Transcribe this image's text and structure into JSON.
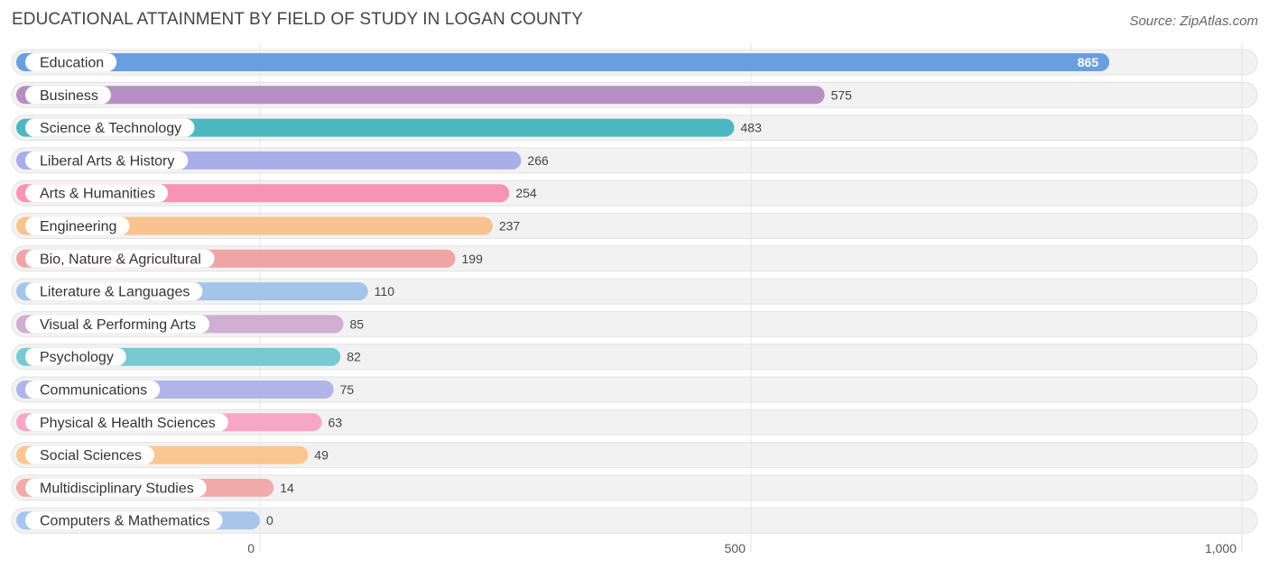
{
  "title": "EDUCATIONAL ATTAINMENT BY FIELD OF STUDY IN LOGAN COUNTY",
  "source": "Source: ZipAtlas.com",
  "chart_data": {
    "type": "bar",
    "orientation": "horizontal",
    "categories": [
      "Education",
      "Business",
      "Science & Technology",
      "Liberal Arts & History",
      "Arts & Humanities",
      "Engineering",
      "Bio, Nature & Agricultural",
      "Literature & Languages",
      "Visual & Performing Arts",
      "Psychology",
      "Communications",
      "Physical & Health Sciences",
      "Social Sciences",
      "Multidisciplinary Studies",
      "Computers & Mathematics"
    ],
    "values": [
      865,
      575,
      483,
      266,
      254,
      237,
      199,
      110,
      85,
      82,
      75,
      63,
      49,
      14,
      0
    ],
    "value_labels": [
      "865",
      "575",
      "483",
      "266",
      "254",
      "237",
      "199",
      "110",
      "85",
      "82",
      "75",
      "63",
      "49",
      "14",
      "0"
    ],
    "colors": [
      "#6a9fdf",
      "#b58fc1",
      "#4eb8c1",
      "#a9aee8",
      "#f793b4",
      "#f9c38f",
      "#f0a5a5",
      "#a4c4ea",
      "#cfafd2",
      "#77c9d2",
      "#b0b4e8",
      "#f7a7c3",
      "#f9c691",
      "#f2aaaa",
      "#a8c6eb"
    ],
    "xlim": [
      0,
      1000
    ],
    "xticks": [
      0,
      500,
      1000
    ],
    "xtick_labels": [
      "0",
      "500",
      "1,000"
    ],
    "grid": true,
    "xlabel": "",
    "ylabel": ""
  }
}
